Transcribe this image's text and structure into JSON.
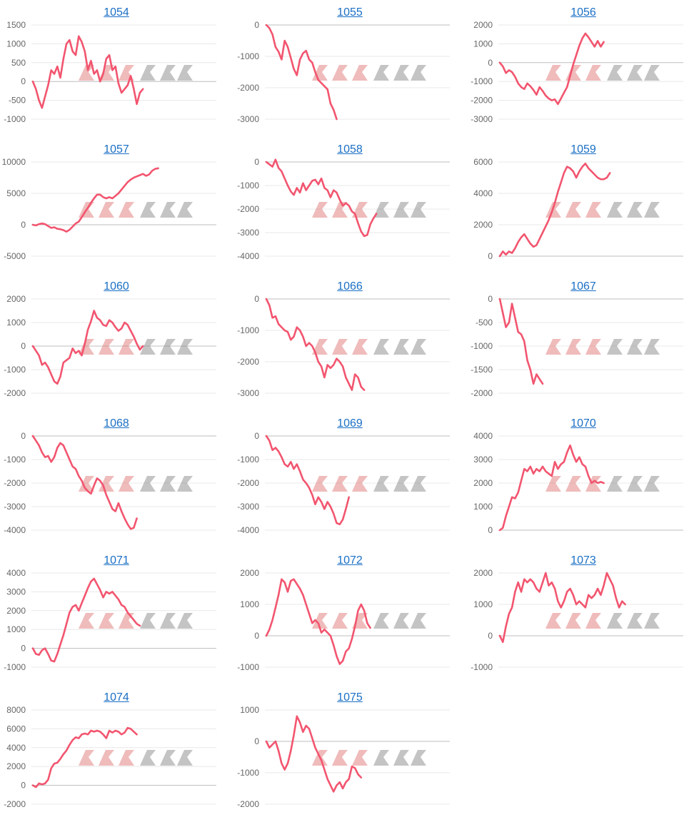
{
  "colors": {
    "line": "#f2556f",
    "zero_line": "#bdbdbd",
    "grid_line": "#e8e8e8",
    "title": "#1a6fc4",
    "tick": "#666666"
  },
  "chart_data": [
    {
      "type": "line",
      "title": "1054",
      "ylim": [
        -1000,
        1500
      ],
      "yticks": [
        1500,
        1000,
        500,
        0,
        -500,
        -1000
      ],
      "x_max": 60,
      "values": [
        0,
        -200,
        -500,
        -700,
        -400,
        -100,
        300,
        200,
        400,
        100,
        600,
        1000,
        1100,
        800,
        700,
        1200,
        1050,
        800,
        300,
        550,
        200,
        300,
        0,
        200,
        600,
        700,
        300,
        400,
        -50,
        -300,
        -200,
        -100,
        150,
        -200,
        -600,
        -300,
        -200
      ]
    },
    {
      "type": "line",
      "title": "1055",
      "ylim": [
        -3000,
        0
      ],
      "yticks": [
        0,
        -1000,
        -2000,
        -3000
      ],
      "x_max": 60,
      "values": [
        0,
        -100,
        -300,
        -700,
        -850,
        -1100,
        -500,
        -700,
        -1050,
        -1400,
        -1600,
        -1100,
        -900,
        -820,
        -1100,
        -1200,
        -1500,
        -1750,
        -1850,
        -1950,
        -2050,
        -2500,
        -2700,
        -3000
      ]
    },
    {
      "type": "line",
      "title": "1056",
      "ylim": [
        -3000,
        2000
      ],
      "yticks": [
        2000,
        1000,
        0,
        -1000,
        -2000,
        -3000
      ],
      "x_max": 60,
      "values": [
        0,
        -200,
        -550,
        -400,
        -500,
        -750,
        -1100,
        -1300,
        -1400,
        -1100,
        -1250,
        -1450,
        -1700,
        -1300,
        -1500,
        -1750,
        -1900,
        -2000,
        -1950,
        -2200,
        -1900,
        -1600,
        -1300,
        -700,
        -100,
        400,
        900,
        1300,
        1550,
        1350,
        1100,
        850,
        1150,
        850,
        1100
      ]
    },
    {
      "type": "line",
      "title": "1057",
      "ylim": [
        -5000,
        10000
      ],
      "yticks": [
        10000,
        5000,
        0,
        -5000
      ],
      "x_max": 60,
      "values": [
        0,
        -100,
        100,
        200,
        100,
        -200,
        -500,
        -400,
        -650,
        -700,
        -850,
        -1100,
        -800,
        -300,
        200,
        500,
        1200,
        2000,
        2700,
        3500,
        4200,
        4800,
        4800,
        4400,
        4200,
        4400,
        4200,
        4600,
        5000,
        5600,
        6200,
        6800,
        7200,
        7500,
        7700,
        7900,
        8100,
        7800,
        8000,
        8600,
        8900,
        9000
      ]
    },
    {
      "type": "line",
      "title": "1058",
      "ylim": [
        -4000,
        0
      ],
      "yticks": [
        0,
        -1000,
        -2000,
        -3000,
        -4000
      ],
      "x_max": 60,
      "values": [
        0,
        -100,
        -200,
        100,
        -250,
        -400,
        -700,
        -1000,
        -1250,
        -1400,
        -1100,
        -1300,
        -900,
        -1200,
        -1000,
        -800,
        -750,
        -950,
        -700,
        -1100,
        -1200,
        -1500,
        -1200,
        -1300,
        -1600,
        -1850,
        -1750,
        -1850,
        -2100,
        -2200,
        -2600,
        -2950,
        -3150,
        -3100,
        -2650,
        -2400,
        -2200
      ]
    },
    {
      "type": "line",
      "title": "1059",
      "ylim": [
        0,
        6000
      ],
      "yticks": [
        6000,
        4000,
        2000,
        0
      ],
      "x_max": 60,
      "values": [
        0,
        300,
        100,
        300,
        200,
        500,
        900,
        1200,
        1400,
        1100,
        800,
        600,
        700,
        1100,
        1500,
        1900,
        2300,
        2800,
        3400,
        4100,
        4700,
        5300,
        5700,
        5600,
        5400,
        5000,
        5400,
        5700,
        5900,
        5600,
        5400,
        5200,
        5000,
        4900,
        4900,
        5000,
        5300
      ]
    },
    {
      "type": "line",
      "title": "1060",
      "ylim": [
        -2000,
        2000
      ],
      "yticks": [
        2000,
        1000,
        0,
        -1000,
        -2000
      ],
      "x_max": 60,
      "values": [
        0,
        -200,
        -400,
        -800,
        -700,
        -900,
        -1200,
        -1500,
        -1600,
        -1300,
        -700,
        -600,
        -500,
        -100,
        -300,
        -200,
        -400,
        100,
        700,
        1050,
        1500,
        1200,
        1100,
        900,
        850,
        1100,
        1000,
        800,
        650,
        750,
        1000,
        900,
        650,
        400,
        100,
        -150,
        0
      ]
    },
    {
      "type": "line",
      "title": "1066",
      "ylim": [
        -3000,
        0
      ],
      "yticks": [
        0,
        -1000,
        -2000,
        -3000
      ],
      "x_max": 60,
      "values": [
        0,
        -200,
        -600,
        -550,
        -800,
        -900,
        -1000,
        -1050,
        -1300,
        -1200,
        -900,
        -1000,
        -1200,
        -1500,
        -1400,
        -1500,
        -1700,
        -2000,
        -2150,
        -2500,
        -2100,
        -2200,
        -2100,
        -1900,
        -2000,
        -2150,
        -2500,
        -2700,
        -2900,
        -2400,
        -2500,
        -2800,
        -2900
      ]
    },
    {
      "type": "line",
      "title": "1067",
      "ylim": [
        -2000,
        0
      ],
      "yticks": [
        0,
        -500,
        -1000,
        -1500,
        -2000
      ],
      "x_max": 60,
      "values": [
        0,
        -300,
        -600,
        -500,
        -100,
        -400,
        -700,
        -750,
        -900,
        -1300,
        -1500,
        -1800,
        -1600,
        -1700,
        -1800
      ]
    },
    {
      "type": "line",
      "title": "1068",
      "ylim": [
        -4000,
        0
      ],
      "yticks": [
        0,
        -1000,
        -2000,
        -3000,
        -4000
      ],
      "x_max": 60,
      "values": [
        0,
        -200,
        -400,
        -700,
        -900,
        -850,
        -1100,
        -900,
        -500,
        -300,
        -400,
        -700,
        -1000,
        -1300,
        -1400,
        -1700,
        -1900,
        -2200,
        -2350,
        -2450,
        -2100,
        -1800,
        -1900,
        -2100,
        -2500,
        -2800,
        -3100,
        -3200,
        -2850,
        -3200,
        -3500,
        -3750,
        -3950,
        -3900,
        -3500
      ]
    },
    {
      "type": "line",
      "title": "1069",
      "ylim": [
        -4000,
        0
      ],
      "yticks": [
        0,
        -1000,
        -2000,
        -3000,
        -4000
      ],
      "x_max": 60,
      "values": [
        0,
        -200,
        -600,
        -500,
        -650,
        -900,
        -1200,
        -1300,
        -1100,
        -1400,
        -1200,
        -1500,
        -1850,
        -2000,
        -2200,
        -2500,
        -2900,
        -2600,
        -2800,
        -3100,
        -2800,
        -3000,
        -3300,
        -3700,
        -3750,
        -3550,
        -3100,
        -2600
      ]
    },
    {
      "type": "line",
      "title": "1070",
      "ylim": [
        0,
        4000
      ],
      "yticks": [
        4000,
        3000,
        2000,
        1000,
        0
      ],
      "x_max": 60,
      "values": [
        0,
        100,
        600,
        1000,
        1400,
        1350,
        1600,
        2100,
        2600,
        2500,
        2700,
        2400,
        2600,
        2500,
        2700,
        2500,
        2400,
        2300,
        2900,
        2600,
        2800,
        2900,
        3300,
        3600,
        3200,
        2900,
        3100,
        2800,
        2700,
        2300,
        2000,
        2100,
        2000,
        2050,
        2000
      ]
    },
    {
      "type": "line",
      "title": "1071",
      "ylim": [
        -1000,
        4000
      ],
      "yticks": [
        4000,
        3000,
        2000,
        1000,
        0,
        -1000
      ],
      "x_max": 60,
      "values": [
        0,
        -300,
        -350,
        -100,
        0,
        -300,
        -650,
        -700,
        -300,
        200,
        700,
        1300,
        1900,
        2200,
        2300,
        2000,
        2400,
        2800,
        3200,
        3550,
        3700,
        3400,
        3100,
        2700,
        3000,
        2900,
        3000,
        2800,
        2600,
        2300,
        2200,
        1900,
        1700,
        1500,
        1300,
        1200
      ]
    },
    {
      "type": "line",
      "title": "1072",
      "ylim": [
        -1000,
        2000
      ],
      "yticks": [
        2000,
        1000,
        0,
        -1000
      ],
      "x_max": 60,
      "values": [
        0,
        200,
        500,
        900,
        1300,
        1800,
        1700,
        1400,
        1750,
        1800,
        1650,
        1500,
        1300,
        1000,
        700,
        400,
        500,
        400,
        100,
        200,
        100,
        0,
        -300,
        -650,
        -900,
        -800,
        -500,
        -400,
        -100,
        300,
        800,
        1000,
        800,
        400,
        250
      ]
    },
    {
      "type": "line",
      "title": "1073",
      "ylim": [
        -1000,
        2000
      ],
      "yticks": [
        2000,
        1000,
        0,
        -1000
      ],
      "x_max": 60,
      "values": [
        0,
        -200,
        300,
        700,
        900,
        1400,
        1700,
        1400,
        1800,
        1700,
        1800,
        1700,
        1500,
        1400,
        1700,
        2000,
        1600,
        1700,
        1500,
        1100,
        900,
        1100,
        1400,
        1500,
        1300,
        1000,
        1100,
        1000,
        900,
        1300,
        1200,
        1300,
        1500,
        1300,
        1600,
        2000,
        1800,
        1600,
        1200,
        900,
        1100,
        1000
      ]
    },
    {
      "type": "line",
      "title": "1074",
      "ylim": [
        -2000,
        8000
      ],
      "yticks": [
        8000,
        6000,
        4000,
        2000,
        0,
        -2000
      ],
      "x_max": 60,
      "values": [
        0,
        -200,
        200,
        100,
        200,
        600,
        1800,
        2300,
        2400,
        2800,
        3300,
        3700,
        4300,
        4800,
        5100,
        5000,
        5400,
        5500,
        5400,
        5800,
        5700,
        5800,
        5700,
        5400,
        5000,
        5800,
        5600,
        5800,
        5700,
        5400,
        5600,
        6100,
        6000,
        5700,
        5400
      ]
    },
    {
      "type": "line",
      "title": "1075",
      "ylim": [
        -2000,
        1000
      ],
      "yticks": [
        1000,
        0,
        -1000,
        -2000
      ],
      "x_max": 60,
      "values": [
        0,
        -200,
        -100,
        0,
        -300,
        -700,
        -900,
        -700,
        -300,
        200,
        800,
        600,
        300,
        500,
        400,
        100,
        -200,
        -400,
        -600,
        -900,
        -1200,
        -1400,
        -1600,
        -1400,
        -1300,
        -1500,
        -1300,
        -1200,
        -800,
        -850,
        -1050,
        -1150
      ]
    }
  ]
}
